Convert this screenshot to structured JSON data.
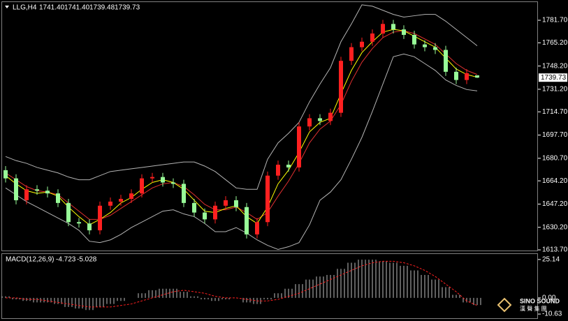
{
  "chart_data": [
    {
      "type": "candlestick",
      "title": "LLG,H4",
      "ohlc_labels": [
        "1741.40",
        "1741.40",
        "1739.48",
        "1739.73"
      ],
      "open": [
        1672,
        1666,
        1650,
        1658,
        1657,
        1655,
        1648,
        1634,
        1633,
        1628,
        1646,
        1649,
        1651,
        1655,
        1666,
        1667,
        1663,
        1662,
        1648,
        1641,
        1636,
        1646,
        1650,
        1645,
        1625,
        1634,
        1668,
        1676,
        1674,
        1704,
        1710,
        1708,
        1714,
        1752,
        1762,
        1766,
        1772,
        1779,
        1775,
        1771,
        1764,
        1762,
        1760,
        1744,
        1738,
        1741.4
      ],
      "high": [
        1675,
        1669,
        1661,
        1661,
        1660,
        1658,
        1651,
        1637,
        1636,
        1649,
        1652,
        1654,
        1658,
        1669,
        1670,
        1670,
        1666,
        1665,
        1651,
        1644,
        1649,
        1653,
        1653,
        1648,
        1637,
        1671,
        1679,
        1679,
        1707,
        1713,
        1713,
        1717,
        1755,
        1765,
        1769,
        1775,
        1782,
        1782,
        1778,
        1774,
        1767,
        1765,
        1763,
        1747,
        1746,
        1741.4
      ],
      "low": [
        1663,
        1647,
        1647,
        1654,
        1652,
        1645,
        1631,
        1630,
        1625,
        1625,
        1643,
        1646,
        1648,
        1652,
        1663,
        1660,
        1659,
        1645,
        1638,
        1633,
        1633,
        1643,
        1642,
        1622,
        1622,
        1631,
        1665,
        1671,
        1671,
        1701,
        1705,
        1705,
        1711,
        1749,
        1759,
        1763,
        1769,
        1772,
        1768,
        1761,
        1759,
        1757,
        1741,
        1735,
        1735,
        1739.48
      ],
      "close": [
        1666,
        1650,
        1658,
        1657,
        1655,
        1648,
        1634,
        1633,
        1628,
        1646,
        1649,
        1651,
        1655,
        1666,
        1667,
        1663,
        1662,
        1648,
        1641,
        1636,
        1646,
        1650,
        1645,
        1625,
        1634,
        1668,
        1676,
        1674,
        1704,
        1710,
        1708,
        1714,
        1752,
        1762,
        1766,
        1772,
        1779,
        1775,
        1771,
        1764,
        1762,
        1760,
        1744,
        1738,
        1743,
        1739.73
      ],
      "up_color": "#ff2020",
      "down_color": "#98fb98",
      "overlays": [
        {
          "color": "#b4b4b4",
          "style": "solid",
          "values": [
            1682,
            1679,
            1677,
            1674,
            1672,
            1670,
            1667,
            1665,
            1665,
            1668,
            1671,
            1672,
            1673,
            1674,
            1675,
            1676,
            1677,
            1678,
            1678,
            1675,
            1671,
            1665,
            1659,
            1658,
            1658,
            1680,
            1692,
            1699,
            1707,
            1722,
            1735,
            1747,
            1766,
            1779,
            1793,
            1792,
            1789,
            1786,
            1784,
            1785,
            1786,
            1786,
            1781,
            1775,
            1769,
            1763
          ]
        },
        {
          "color": "#b4b4b4",
          "style": "solid",
          "values": [
            1659,
            1654,
            1649,
            1645,
            1641,
            1637,
            1633,
            1628,
            1620,
            1619,
            1621,
            1625,
            1630,
            1634,
            1638,
            1642,
            1643,
            1640,
            1638,
            1633,
            1627,
            1627,
            1630,
            1626,
            1621,
            1617,
            1614,
            1616,
            1619,
            1632,
            1650,
            1656,
            1665,
            1680,
            1696,
            1715,
            1735,
            1755,
            1757,
            1755,
            1750,
            1745,
            1738,
            1734,
            1731,
            1730
          ]
        },
        {
          "color": "#e03030",
          "style": "solid",
          "values": [
            1670,
            1665,
            1660,
            1657,
            1656,
            1654,
            1648,
            1642,
            1636,
            1636,
            1639,
            1644,
            1649,
            1654,
            1659,
            1662,
            1663,
            1660,
            1654,
            1647,
            1643,
            1643,
            1645,
            1641,
            1636,
            1641,
            1653,
            1664,
            1677,
            1692,
            1702,
            1708,
            1720,
            1737,
            1751,
            1761,
            1769,
            1773,
            1774,
            1772,
            1768,
            1764,
            1757,
            1750,
            1745,
            1742
          ]
        },
        {
          "color": "#ffff00",
          "style": "solid",
          "values": [
            1668,
            1662,
            1657,
            1655,
            1656,
            1653,
            1645,
            1638,
            1632,
            1636,
            1641,
            1648,
            1652,
            1658,
            1663,
            1665,
            1663,
            1658,
            1650,
            1642,
            1641,
            1644,
            1646,
            1638,
            1633,
            1645,
            1662,
            1672,
            1685,
            1700,
            1707,
            1710,
            1728,
            1745,
            1758,
            1766,
            1773,
            1775,
            1774,
            1770,
            1766,
            1762,
            1754,
            1746,
            1742,
            1740
          ]
        }
      ],
      "ylim": [
        1612.7,
        1795.5
      ],
      "yticks": [
        {
          "value": 1781.7,
          "label": "1781.70"
        },
        {
          "value": 1765.2,
          "label": "1765.20"
        },
        {
          "value": 1748.2,
          "label": "1748.20"
        },
        {
          "value": 1731.2,
          "label": "1731.20"
        },
        {
          "value": 1714.7,
          "label": "1714.70"
        },
        {
          "value": 1697.7,
          "label": "1697.70"
        },
        {
          "value": 1680.7,
          "label": "1680.70"
        },
        {
          "value": 1664.2,
          "label": "1664.20"
        },
        {
          "value": 1647.2,
          "label": "1647.20"
        },
        {
          "value": 1630.2,
          "label": "1630.20"
        },
        {
          "value": 1613.7,
          "label": "1613.70"
        }
      ],
      "grid": false
    },
    {
      "type": "macd",
      "title": "MACD(12,26,9)",
      "series": [
        {
          "color": "#c0c0c0",
          "style": "histogram",
          "values": [
            1,
            -1,
            -2,
            -3,
            -3,
            -4,
            -6,
            -7,
            -8,
            -6,
            -4,
            -2,
            0,
            3,
            5,
            6,
            6,
            4,
            1,
            -1,
            -2,
            -1,
            0,
            -3,
            -4,
            -1,
            3,
            6,
            9,
            12,
            14,
            15,
            19,
            23,
            25,
            25,
            24,
            23,
            21,
            18,
            15,
            12,
            7,
            2,
            -3,
            -4.723
          ]
        },
        {
          "color": "#ff2020",
          "style": "dashed",
          "values": [
            0,
            0,
            -1,
            -1,
            -2,
            -3,
            -4,
            -5,
            -6,
            -6,
            -6,
            -5,
            -4,
            -2,
            0,
            2,
            4,
            5,
            4,
            3,
            1,
            0,
            0,
            -1,
            -2,
            -2,
            -1,
            1,
            3,
            6,
            9,
            12,
            15,
            18,
            21,
            23,
            24,
            24,
            23,
            21,
            18,
            14,
            9,
            4,
            -2,
            -5.028
          ]
        }
      ],
      "ylim": [
        -13.35,
        29.2
      ],
      "yticks": [
        25.14,
        {
          "value": 0,
          "label": "0.00"
        },
        -10.63
      ],
      "grid": false
    }
  ],
  "brand": {
    "name": "SINO SOUND",
    "sub": "漢 聲 集 團"
  }
}
